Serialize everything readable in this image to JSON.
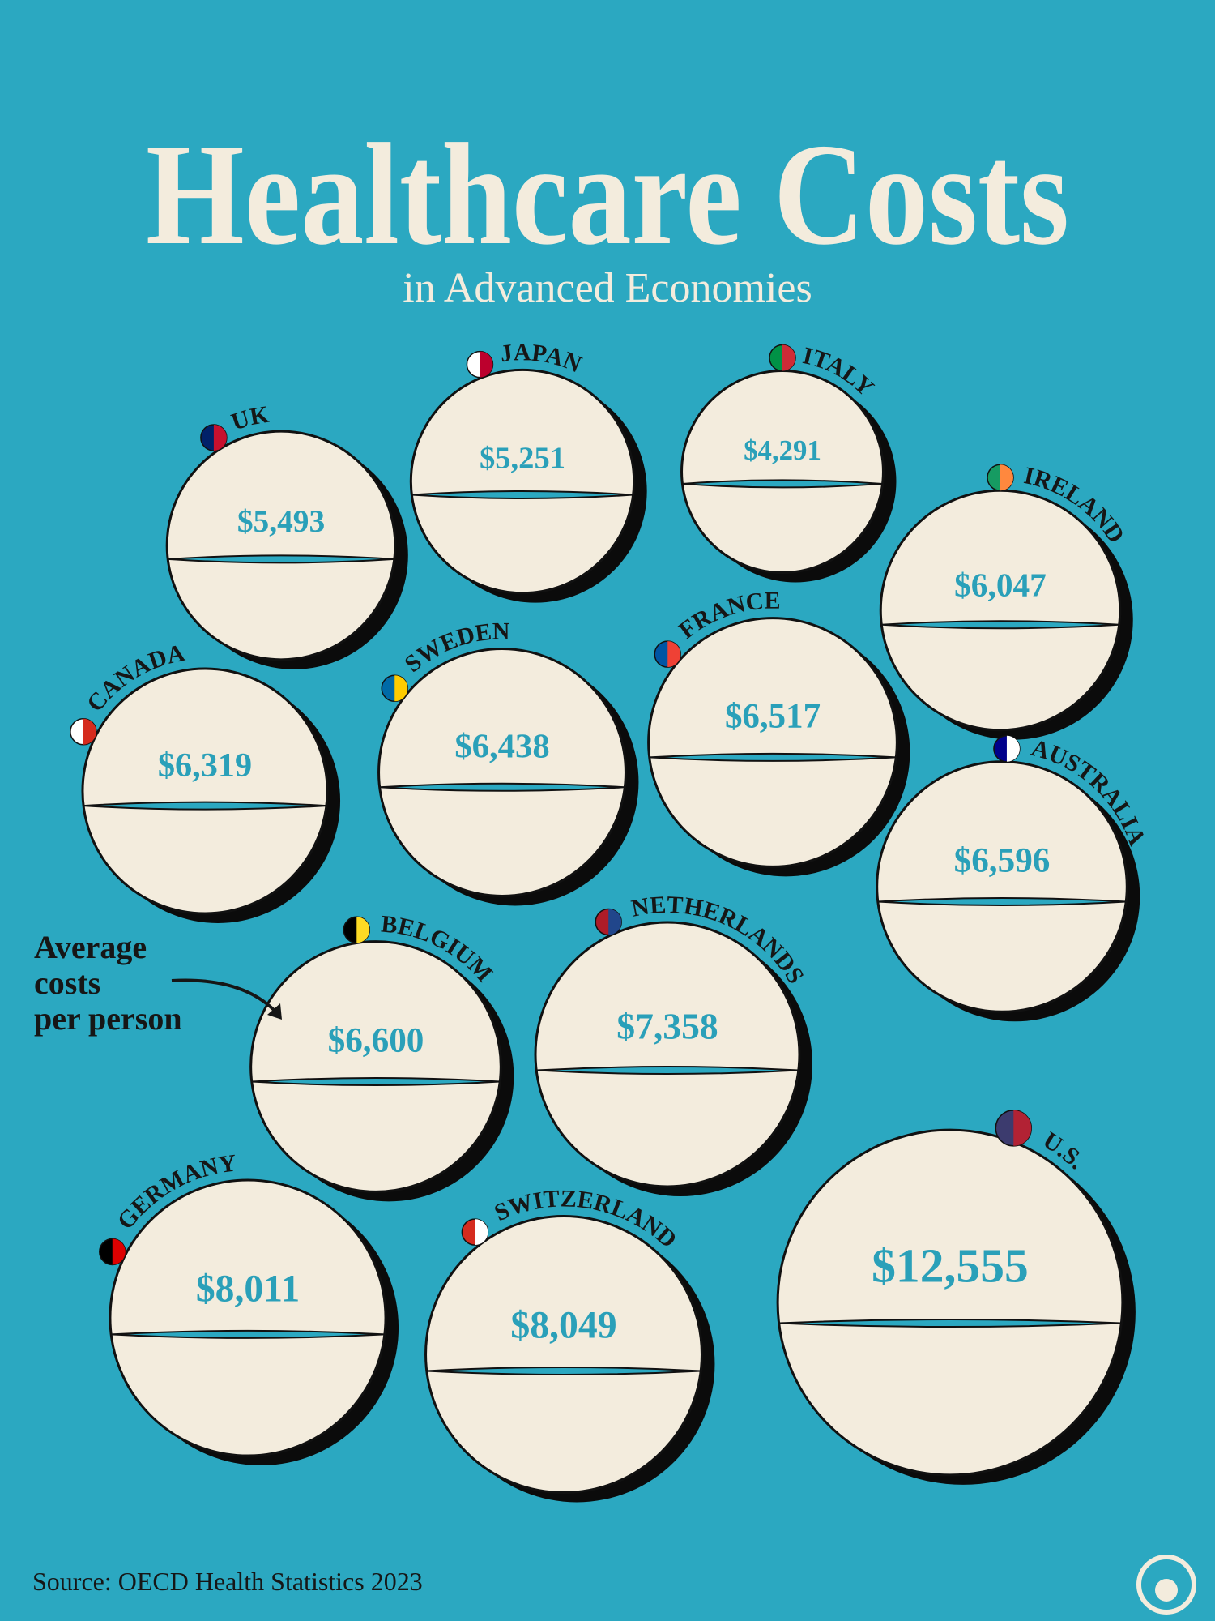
{
  "chart_data": {
    "type": "bubble",
    "title": "Healthcare Costs",
    "subtitle": "in Advanced Economies",
    "categories": [
      "UK",
      "JAPAN",
      "ITALY",
      "IRELAND",
      "CANADA",
      "SWEDEN",
      "FRANCE",
      "AUSTRALIA",
      "BELGIUM",
      "NETHERLANDS",
      "U.S.",
      "GERMANY",
      "SWITZERLAND"
    ],
    "values": [
      5493,
      5251,
      4291,
      6047,
      6319,
      6438,
      6517,
      6596,
      6600,
      7358,
      12555,
      8011,
      8049
    ],
    "value_labels": [
      "$5,493",
      "$5,251",
      "$4,291",
      "$6,047",
      "$6,319",
      "$6,438",
      "$6,517",
      "$6,596",
      "$6,600",
      "$7,358",
      "$12,555",
      "$8,011",
      "$8,049"
    ],
    "annotation": [
      "Average",
      "costs",
      "per person"
    ],
    "source": "Source: OECD Health Statistics 2023",
    "color": "#f3ecdd"
  }
}
